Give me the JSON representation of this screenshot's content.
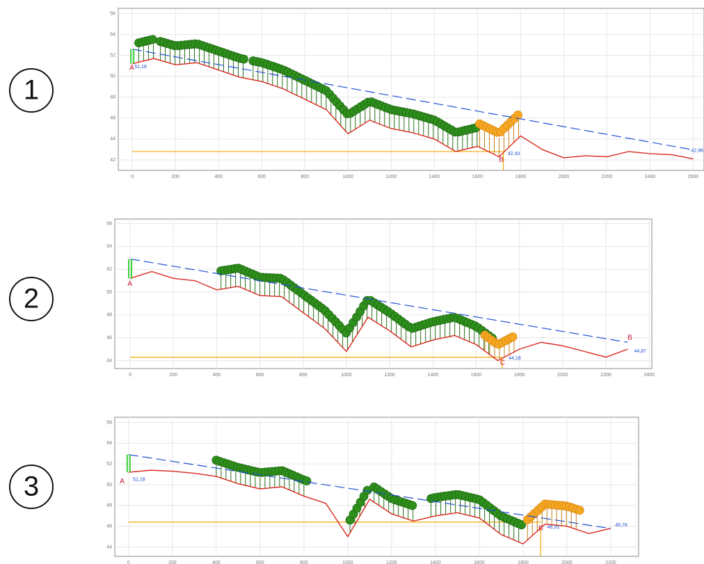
{
  "chart_data": [
    {
      "type": "line",
      "label": "1",
      "x": [
        0,
        100,
        200,
        300,
        400,
        500,
        600,
        700,
        800,
        900,
        1000,
        1100,
        1200,
        1300,
        1400,
        1500,
        1600,
        1700,
        1800,
        1900,
        2000,
        2100,
        2200,
        2300,
        2400,
        2500,
        2600
      ],
      "series": [
        {
          "color": "#d9261c",
          "values": [
            51.2,
            51.7,
            51.1,
            51.3,
            50.6,
            49.9,
            49.5,
            48.8,
            47.8,
            46.8,
            44.5,
            45.8,
            45.0,
            44.6,
            44.0,
            42.8,
            43.3,
            42.3,
            44.3,
            43.0,
            42.2,
            42.4,
            42.3,
            42.8,
            42.6,
            42.5,
            42.1
          ]
        }
      ],
      "sight_line": {
        "x": [
          0,
          2600
        ],
        "values": [
          52.6,
          42.96
        ],
        "color": "#1f4fd6"
      },
      "level": {
        "y": 42.8,
        "x": [
          0,
          1720
        ],
        "color": "#f0a800"
      },
      "vegetation": [
        {
          "x": [
            30,
            110
          ],
          "height": 1.8,
          "color": "#2f8f1c"
        },
        {
          "x": [
            130,
            520
          ],
          "height": 1.9,
          "color": "#2f8f1c"
        },
        {
          "x": [
            560,
            1600
          ],
          "height": 1.8,
          "color": "#2f8f1c"
        },
        {
          "x": [
            1610,
            1800
          ],
          "height": 2.2,
          "color": "#f5a623"
        }
      ],
      "annotations": [
        {
          "text": "A",
          "x": -13,
          "y": 50.8,
          "color": "#c8102e"
        },
        {
          "text": "51,18",
          "x": 10,
          "y": 50.9,
          "color": "#1f4fd6"
        },
        {
          "text": "B",
          "x": 1700,
          "y": 42.0,
          "color": "#c8102e"
        },
        {
          "text": "42,43",
          "x": 1740,
          "y": 42.6,
          "color": "#1f4fd6"
        },
        {
          "text": "42,96",
          "x": 2590,
          "y": 42.9,
          "color": "#1f4fd6"
        }
      ],
      "xlim": [
        -65,
        2650
      ],
      "ylim": [
        41,
        56.5
      ],
      "xticks": [
        0,
        200,
        400,
        600,
        800,
        1000,
        1200,
        1400,
        1600,
        1800,
        2000,
        2200,
        2400,
        2600
      ],
      "yticks": [
        42,
        44,
        46,
        48,
        50,
        52,
        54,
        56
      ],
      "grid": true
    },
    {
      "type": "line",
      "label": "2",
      "x": [
        0,
        100,
        200,
        300,
        400,
        500,
        600,
        700,
        800,
        900,
        1000,
        1100,
        1200,
        1300,
        1400,
        1500,
        1600,
        1700,
        1800,
        1900,
        2000,
        2100,
        2200,
        2300
      ],
      "series": [
        {
          "color": "#d9261c",
          "values": [
            51.2,
            51.8,
            51.2,
            51.0,
            50.2,
            50.5,
            49.7,
            49.6,
            48.2,
            46.8,
            44.8,
            47.8,
            46.6,
            45.2,
            45.8,
            46.2,
            45.4,
            44.0,
            45.0,
            45.6,
            45.3,
            44.8,
            44.3,
            45.0
          ]
        }
      ],
      "sight_line": {
        "x": [
          0,
          2300
        ],
        "values": [
          52.9,
          45.6
        ],
        "color": "#1f4fd6"
      },
      "level": {
        "y": 44.3,
        "x": [
          0,
          1720
        ],
        "color": "#f0a800"
      },
      "vegetation": [
        {
          "x": [
            420,
            1680
          ],
          "height": 1.7,
          "color": "#2f8f1c"
        },
        {
          "x": [
            1640,
            1780
          ],
          "height": 1.5,
          "color": "#f5a623"
        }
      ],
      "annotations": [
        {
          "text": "A",
          "x": -12,
          "y": 50.7,
          "color": "#c8102e"
        },
        {
          "text": "B",
          "x": 2300,
          "y": 46.0,
          "color": "#c8102e"
        },
        {
          "text": "C",
          "x": 1710,
          "y": 43.8,
          "color": "#c8102e"
        },
        {
          "text": "44,18",
          "x": 1750,
          "y": 44.2,
          "color": "#1f4fd6"
        },
        {
          "text": "44,87",
          "x": 2330,
          "y": 44.8,
          "color": "#1f4fd6"
        }
      ],
      "xlim": [
        -71,
        2412
      ],
      "ylim": [
        43.3,
        56.4
      ],
      "xticks": [
        0,
        200,
        400,
        600,
        800,
        1000,
        1200,
        1400,
        1600,
        1800,
        2000,
        2200,
        2400
      ],
      "yticks": [
        44,
        46,
        48,
        50,
        52,
        54,
        56
      ],
      "grid": true
    },
    {
      "type": "line",
      "label": "3",
      "x": [
        0,
        100,
        200,
        300,
        400,
        500,
        600,
        700,
        800,
        900,
        1000,
        1100,
        1200,
        1300,
        1400,
        1500,
        1600,
        1700,
        1800,
        1900,
        2000,
        2100,
        2200
      ],
      "series": [
        {
          "color": "#d9261c",
          "values": [
            51.2,
            51.4,
            51.3,
            51.1,
            50.8,
            50.1,
            49.6,
            49.8,
            48.9,
            48.2,
            45.0,
            48.6,
            47.2,
            46.5,
            47.0,
            47.3,
            46.8,
            45.2,
            44.3,
            46.2,
            46.0,
            45.3,
            45.8
          ]
        }
      ],
      "sight_line": {
        "x": [
          0,
          2200
        ],
        "values": [
          52.9,
          45.78
        ],
        "color": "#1f4fd6"
      },
      "level": {
        "y": 46.4,
        "x": [
          0,
          1880
        ],
        "color": "#f0a800"
      },
      "vegetation": [
        {
          "x": [
            400,
            820
          ],
          "height": 1.5,
          "color": "#2f8f1c"
        },
        {
          "x": [
            1010,
            1090
          ],
          "height": 1.2,
          "color": "#2f8f1c"
        },
        {
          "x": [
            1120,
            1300
          ],
          "height": 1.6,
          "color": "#2f8f1c"
        },
        {
          "x": [
            1380,
            1800
          ],
          "height": 1.8,
          "color": "#2f8f1c"
        },
        {
          "x": [
            1820,
            2060
          ],
          "height": 2.0,
          "color": "#f5a623"
        }
      ],
      "annotations": [
        {
          "text": "A",
          "x": -40,
          "y": 50.3,
          "color": "#c8102e"
        },
        {
          "text": "51,18",
          "x": 20,
          "y": 50.5,
          "color": "#1f4fd6"
        },
        {
          "text": "B",
          "x": 1870,
          "y": 45.8,
          "color": "#c8102e"
        },
        {
          "text": "46,31",
          "x": 1910,
          "y": 45.9,
          "color": "#1f4fd6"
        },
        {
          "text": "45,78",
          "x": 2220,
          "y": 46.1,
          "color": "#1f4fd6"
        }
      ],
      "xlim": [
        -63,
        2327
      ],
      "ylim": [
        43.1,
        56.5
      ],
      "xticks": [
        0,
        200,
        400,
        600,
        800,
        1000,
        1200,
        1400,
        1600,
        1800,
        2000,
        2200
      ],
      "yticks": [
        44,
        46,
        48,
        50,
        52,
        54,
        56
      ],
      "grid": true
    }
  ]
}
